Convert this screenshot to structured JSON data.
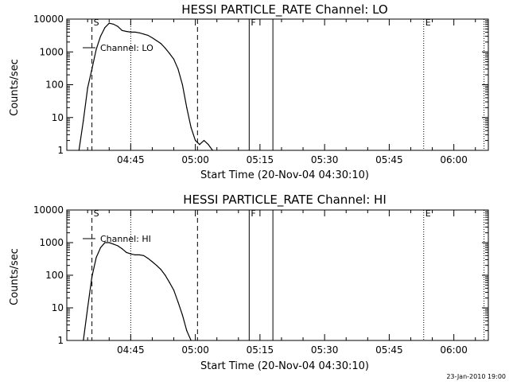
{
  "chart_data": [
    {
      "type": "line",
      "title": "HESSI PARTICLE_RATE Channel: LO",
      "xlabel": "Start Time (20-Nov-04 04:30:10)",
      "ylabel": "Counts/sec",
      "yscale": "log",
      "ylim": [
        1,
        10000
      ],
      "xlim": [
        "04:30:10",
        "06:08:00"
      ],
      "x_tick_labels": [
        "04:45",
        "05:00",
        "05:15",
        "05:30",
        "05:45",
        "06:00"
      ],
      "y_tick_labels": [
        "1",
        "10",
        "100",
        "1000",
        "10000"
      ],
      "grid": false,
      "legend": "upper-left",
      "series": [
        {
          "name": "Channel: LO",
          "x": [
            "04:33:00",
            "04:34:00",
            "04:35:00",
            "04:36:00",
            "04:37:00",
            "04:38:00",
            "04:39:00",
            "04:40:00",
            "04:41:00",
            "04:42:00",
            "04:43:00",
            "04:44:00",
            "04:45:00",
            "04:46:00",
            "04:47:00",
            "04:48:00",
            "04:49:00",
            "04:50:00",
            "04:51:00",
            "04:52:00",
            "04:53:00",
            "04:54:00",
            "04:55:00",
            "04:56:00",
            "04:57:00",
            "04:58:00",
            "04:59:00",
            "05:00:00",
            "05:01:00",
            "05:02:00",
            "05:03:00",
            "05:04:00"
          ],
          "values": [
            1,
            8,
            80,
            300,
            1200,
            3000,
            5500,
            7500,
            7000,
            6000,
            4500,
            4200,
            4000,
            4000,
            3800,
            3500,
            3200,
            2700,
            2200,
            1800,
            1300,
            900,
            600,
            300,
            100,
            20,
            5,
            2,
            1.5,
            2,
            1.5,
            1
          ]
        }
      ],
      "markers": [
        {
          "label": "S",
          "time": "04:36:00",
          "style": "dashed"
        },
        {
          "label": "",
          "time": "04:45:00",
          "style": "dotted"
        },
        {
          "label": "",
          "time": "05:00:30",
          "style": "dashed"
        },
        {
          "label": "F",
          "time": "05:12:30",
          "style": "solid"
        },
        {
          "label": "",
          "time": "05:18:00",
          "style": "solid"
        },
        {
          "label": "E",
          "time": "05:53:00",
          "style": "dotted"
        },
        {
          "label": "",
          "time": "06:07:00",
          "style": "dotted"
        }
      ]
    },
    {
      "type": "line",
      "title": "HESSI PARTICLE_RATE Channel: HI",
      "xlabel": "Start Time (20-Nov-04 04:30:10)",
      "ylabel": "Counts/sec",
      "yscale": "log",
      "ylim": [
        1,
        10000
      ],
      "xlim": [
        "04:30:10",
        "06:08:00"
      ],
      "x_tick_labels": [
        "04:45",
        "05:00",
        "05:15",
        "05:30",
        "05:45",
        "06:00"
      ],
      "y_tick_labels": [
        "1",
        "10",
        "100",
        "1000",
        "10000"
      ],
      "grid": false,
      "legend": "upper-left",
      "series": [
        {
          "name": "Channel: HI",
          "x": [
            "04:34:00",
            "04:35:00",
            "04:36:00",
            "04:37:00",
            "04:38:00",
            "04:39:00",
            "04:40:00",
            "04:41:00",
            "04:42:00",
            "04:43:00",
            "04:44:00",
            "04:45:00",
            "04:46:00",
            "04:47:00",
            "04:48:00",
            "04:49:00",
            "04:50:00",
            "04:51:00",
            "04:52:00",
            "04:53:00",
            "04:54:00",
            "04:55:00",
            "04:56:00",
            "04:57:00",
            "04:58:00",
            "04:59:00"
          ],
          "values": [
            1,
            10,
            90,
            350,
            700,
            1000,
            1000,
            900,
            800,
            650,
            500,
            450,
            420,
            420,
            400,
            330,
            260,
            200,
            150,
            100,
            60,
            35,
            15,
            6,
            2,
            1
          ]
        }
      ],
      "markers": [
        {
          "label": "S",
          "time": "04:36:00",
          "style": "dashed"
        },
        {
          "label": "",
          "time": "04:45:00",
          "style": "dotted"
        },
        {
          "label": "",
          "time": "05:00:30",
          "style": "dashed"
        },
        {
          "label": "F",
          "time": "05:12:30",
          "style": "solid"
        },
        {
          "label": "",
          "time": "05:18:00",
          "style": "solid"
        },
        {
          "label": "E",
          "time": "05:53:00",
          "style": "dotted"
        },
        {
          "label": "",
          "time": "06:07:00",
          "style": "dotted"
        }
      ]
    }
  ],
  "footer": {
    "timestamp": "23-Jan-2010 19:00"
  }
}
